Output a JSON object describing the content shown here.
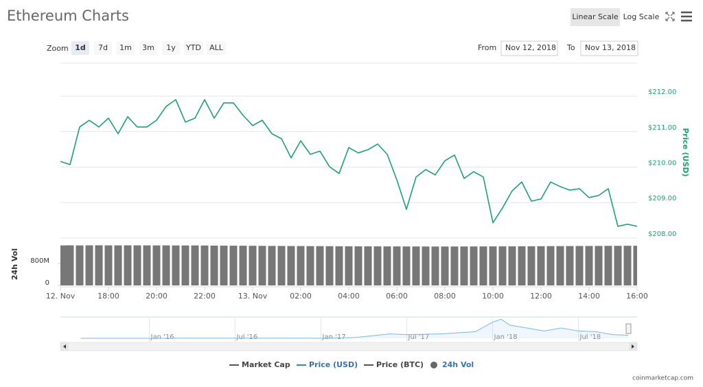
{
  "header": {
    "title": "Ethereum Charts",
    "scale_buttons": [
      "Linear Scale",
      "Log Scale"
    ],
    "zoom_label": "Zoom",
    "zoom_buttons": [
      "1d",
      "7d",
      "1m",
      "3m",
      "1y",
      "YTD",
      "ALL"
    ],
    "from_label": "From",
    "from_value": "Nov 12, 2018",
    "to_label": "To",
    "to_value": "Nov 13, 2018"
  },
  "chart_data": [
    {
      "type": "line",
      "name": "Price (USD)",
      "y_label": "Price (USD)",
      "color": "#1aa36f",
      "x": [
        16,
        16.4,
        16.8,
        17.2,
        17.6,
        18,
        18.4,
        18.8,
        19.2,
        19.6,
        20,
        20.4,
        20.8,
        21.2,
        21.6,
        22,
        22.4,
        22.8,
        23.2,
        23.6,
        24,
        24.4,
        24.8,
        25.2,
        25.6,
        26,
        26.4,
        26.8,
        27.2,
        27.6,
        28,
        28.4,
        28.8,
        29.2,
        29.6,
        30,
        30.4,
        30.8,
        31.2,
        31.6,
        32,
        32.4,
        32.8,
        33.2,
        33.6,
        34,
        34.4,
        34.8,
        35.2,
        35.6,
        36,
        36.4,
        36.8,
        37.2,
        37.6,
        38,
        38.4,
        38.8,
        39.2,
        39.6,
        40
      ],
      "values": [
        210.16,
        210.07,
        211.13,
        211.32,
        211.13,
        211.38,
        210.94,
        211.42,
        211.13,
        211.13,
        211.32,
        211.71,
        211.9,
        211.27,
        211.38,
        211.9,
        211.38,
        211.81,
        211.81,
        211.46,
        211.17,
        211.32,
        210.94,
        210.8,
        210.26,
        210.74,
        210.36,
        210.45,
        210.01,
        209.82,
        210.55,
        210.4,
        210.49,
        210.65,
        210.36,
        209.64,
        208.81,
        209.72,
        209.93,
        209.78,
        210.18,
        210.34,
        209.68,
        209.87,
        209.72,
        208.43,
        208.85,
        209.33,
        209.58,
        209.04,
        209.1,
        209.58,
        209.45,
        209.35,
        209.39,
        209.14,
        209.2,
        209.39,
        208.33,
        208.39,
        208.33
      ],
      "xlim": [
        16,
        40
      ],
      "ylim": [
        207.94,
        212.93
      ],
      "yticks": [
        {
          "value": 208,
          "label": "$208.00"
        },
        {
          "value": 209,
          "label": "$209.00"
        },
        {
          "value": 210,
          "label": "$210.00"
        },
        {
          "value": 211,
          "label": "$211.00"
        },
        {
          "value": 212,
          "label": "$212.00"
        }
      ],
      "grid": true
    },
    {
      "type": "bar",
      "name": "24h Vol",
      "y_label": "24h Vol",
      "color": "#777777",
      "x": [
        16,
        16.4,
        16.8,
        17.2,
        17.6,
        18,
        18.4,
        18.8,
        19.2,
        19.6,
        20,
        20.4,
        20.8,
        21.2,
        21.6,
        22,
        22.4,
        22.8,
        23.2,
        23.6,
        24,
        24.4,
        24.8,
        25.2,
        25.6,
        26,
        26.4,
        26.8,
        27.2,
        27.6,
        28,
        28.4,
        28.8,
        29.2,
        29.6,
        30,
        30.4,
        30.8,
        31.2,
        31.6,
        32,
        32.4,
        32.8,
        33.2,
        33.6,
        34,
        34.4,
        34.8,
        35.2,
        35.6,
        36,
        36.4,
        36.8,
        37.2,
        37.6,
        38,
        38.4,
        38.8,
        39.2,
        39.6,
        40
      ],
      "values": [
        1460000000,
        1462000000,
        1458000000,
        1461000000,
        1463000000,
        1460000000,
        1459000000,
        1462000000,
        1461000000,
        1460000000,
        1458000000,
        1459000000,
        1457000000,
        1456000000,
        1458000000,
        1455000000,
        1452000000,
        1450000000,
        1448000000,
        1447000000,
        1445000000,
        1442000000,
        1440000000,
        1438000000,
        1436000000,
        1435000000,
        1433000000,
        1432000000,
        1430000000,
        1428000000,
        1427000000,
        1426000000,
        1425000000,
        1424000000,
        1423000000,
        1422000000,
        1420000000,
        1420000000,
        1419000000,
        1418000000,
        1418000000,
        1419000000,
        1420000000,
        1421000000,
        1422000000,
        1423000000,
        1424000000,
        1425000000,
        1427000000,
        1428000000,
        1430000000,
        1432000000,
        1433000000,
        1435000000,
        1437000000,
        1438000000,
        1440000000,
        1442000000,
        1443000000,
        1445000000,
        1446000000
      ],
      "xlim": [
        16,
        40
      ],
      "xticks": [
        {
          "value": 16,
          "label": "12. Nov"
        },
        {
          "value": 18,
          "label": "18:00"
        },
        {
          "value": 20,
          "label": "20:00"
        },
        {
          "value": 22,
          "label": "22:00"
        },
        {
          "value": 24,
          "label": "13. Nov"
        },
        {
          "value": 26,
          "label": "02:00"
        },
        {
          "value": 28,
          "label": "04:00"
        },
        {
          "value": 30,
          "label": "06:00"
        },
        {
          "value": 32,
          "label": "08:00"
        },
        {
          "value": 34,
          "label": "10:00"
        },
        {
          "value": 36,
          "label": "12:00"
        },
        {
          "value": 38,
          "label": "14:00"
        },
        {
          "value": 40,
          "label": "16:00"
        }
      ],
      "ylim": [
        0,
        1500000000
      ],
      "yticks": [
        0,
        {
          "value": 800000000,
          "label": "800M"
        }
      ]
    },
    {
      "type": "area",
      "color": "#7cb5ec",
      "x": [
        2015.6,
        2016.0,
        2016.2,
        2016.5,
        2017.0,
        2017.2,
        2017.4,
        2017.5,
        2017.7,
        2017.9,
        2018.0,
        2018.05,
        2018.1,
        2018.2,
        2018.3,
        2018.4,
        2018.5,
        2018.6,
        2018.7,
        2018.79
      ],
      "values": [
        1,
        1,
        10,
        12,
        8,
        50,
        300,
        250,
        300,
        450,
        1100,
        1300,
        900,
        700,
        500,
        700,
        500,
        450,
        250,
        210
      ],
      "xlim": [
        2015.53,
        2018.79
      ],
      "ylim": [
        0,
        1450
      ],
      "xticks": [
        {
          "value": 2016,
          "label": "Jan '16"
        },
        {
          "value": 2016.5,
          "label": "Jul '16"
        },
        {
          "value": 2017,
          "label": "Jan '17"
        },
        {
          "value": 2017.5,
          "label": "Jul '17"
        },
        {
          "value": 2018,
          "label": "Jan '18"
        },
        {
          "value": 2018.5,
          "label": "Jul '18"
        }
      ]
    }
  ],
  "legend": {
    "items": [
      {
        "name": "Market Cap",
        "color": "#555555"
      },
      {
        "name": "Price (USD)",
        "color": "#1aa36f"
      },
      {
        "name": "Price (BTC)",
        "color": "#555555"
      },
      {
        "name": "24h Vol",
        "color": "#666666"
      }
    ]
  },
  "credit": "coinmarketcap.com"
}
